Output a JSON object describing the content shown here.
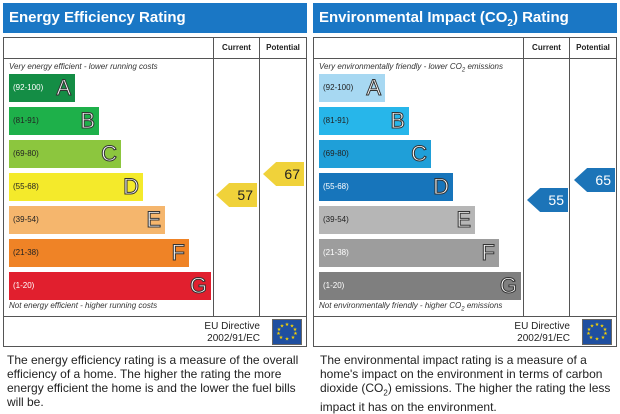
{
  "energy": {
    "title": "Energy Efficiency Rating",
    "title_color": "#1a77c5",
    "col_current": "Current",
    "col_potential": "Potential",
    "top_caption": "Very energy efficient - lower running costs",
    "bottom_caption": "Not energy efficient - higher running costs",
    "bands": [
      {
        "range": "(92-100)",
        "letter": "A",
        "color": "#148d45"
      },
      {
        "range": "(81-91)",
        "letter": "B",
        "color": "#1eb04a"
      },
      {
        "range": "(69-80)",
        "letter": "C",
        "color": "#8cc63e"
      },
      {
        "range": "(55-68)",
        "letter": "D",
        "color": "#f4ea2b"
      },
      {
        "range": "(39-54)",
        "letter": "E",
        "color": "#f5b66d"
      },
      {
        "range": "(21-38)",
        "letter": "F",
        "color": "#ef8326"
      },
      {
        "range": "(1-20)",
        "letter": "G",
        "color": "#e11f2e"
      }
    ],
    "current": {
      "value": "57",
      "color": "#f0d23a"
    },
    "potential": {
      "value": "67",
      "color": "#f0d23a"
    },
    "eu_line1": "EU Directive",
    "eu_line2": "2002/91/EC",
    "description": "The energy efficiency rating is a measure of the overall efficiency of a home. The higher the rating the more energy efficient the home is and the lower the fuel bills will be."
  },
  "environment": {
    "title_before": "Environmental Impact (CO",
    "title_sub": "2",
    "title_after": ") Rating",
    "title_color": "#1a77c5",
    "col_current": "Current",
    "col_potential": "Potential",
    "top_caption_before": "Very environmentally friendly - lower CO",
    "top_caption_sub": "2",
    "top_caption_after": " emissions",
    "bottom_caption_before": "Not environmentally friendly - higher CO",
    "bottom_caption_sub": "2",
    "bottom_caption_after": " emissions",
    "bands": [
      {
        "range": "(92-100)",
        "letter": "A",
        "color": "#a7d8f2"
      },
      {
        "range": "(81-91)",
        "letter": "B",
        "color": "#27b6ea"
      },
      {
        "range": "(69-80)",
        "letter": "C",
        "color": "#1f9fd8"
      },
      {
        "range": "(55-68)",
        "letter": "D",
        "color": "#1775bb"
      },
      {
        "range": "(39-54)",
        "letter": "E",
        "color": "#b6b6b6"
      },
      {
        "range": "(21-38)",
        "letter": "F",
        "color": "#9d9d9d"
      },
      {
        "range": "(1-20)",
        "letter": "G",
        "color": "#7f7f7f"
      }
    ],
    "current": {
      "value": "55",
      "color": "#1c74b8"
    },
    "potential": {
      "value": "65",
      "color": "#1c74b8"
    },
    "eu_line1": "EU Directive",
    "eu_line2": "2002/91/EC",
    "description_1": "The environmental impact rating is a measure of a home's impact on the environment in terms of carbon dioxide (CO",
    "description_sub": "2",
    "description_2": ") emissions. The higher the rating the less impact it has on the environment."
  }
}
